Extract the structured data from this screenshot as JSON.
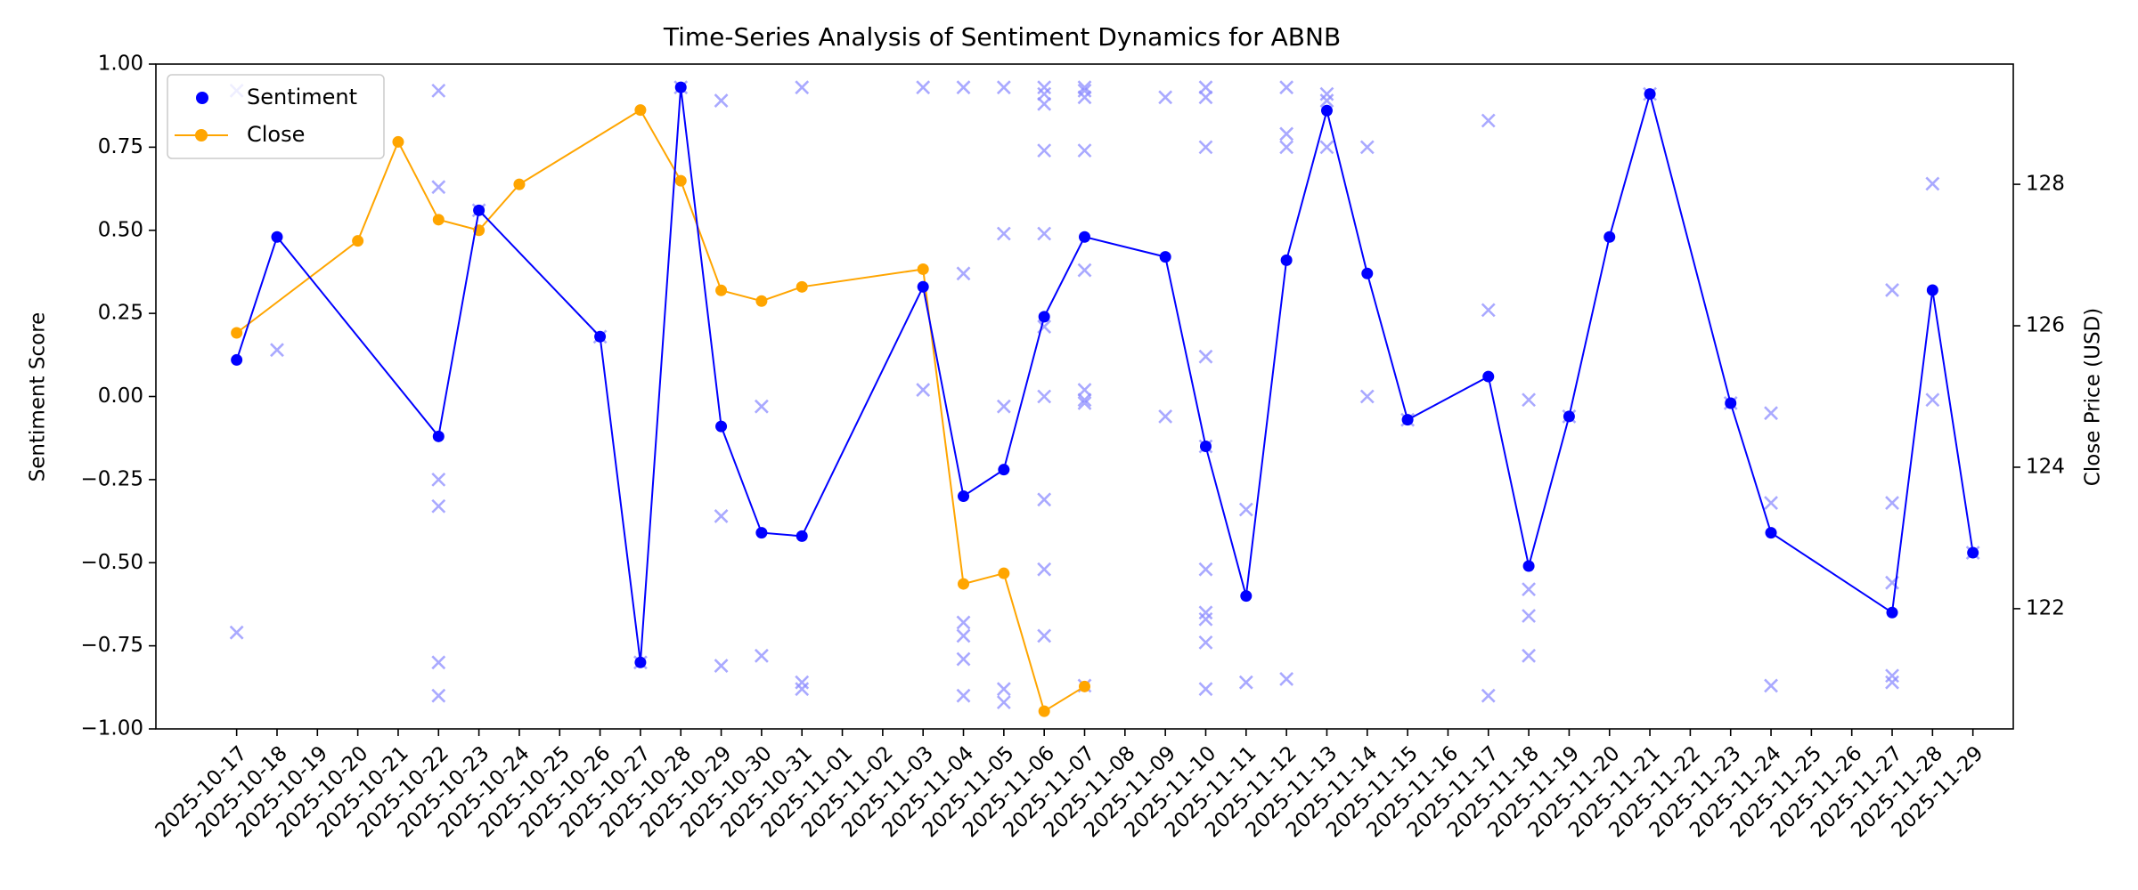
{
  "chart_data": {
    "type": "line",
    "title": "Time-Series Analysis of Sentiment Dynamics for ABNB",
    "xlabel": "",
    "ylabel": "Sentiment Score",
    "y2label": "Close Price (USD)",
    "ylim": [
      -1.0,
      1.0
    ],
    "y2lim": [
      120.3,
      129.7
    ],
    "x_range": [
      "2025-10-15",
      "2025-11-30"
    ],
    "x_ticks": [
      "2025-10-17",
      "2025-10-18",
      "2025-10-19",
      "2025-10-20",
      "2025-10-21",
      "2025-10-22",
      "2025-10-23",
      "2025-10-24",
      "2025-10-25",
      "2025-10-26",
      "2025-10-27",
      "2025-10-28",
      "2025-10-29",
      "2025-10-30",
      "2025-10-31",
      "2025-11-01",
      "2025-11-02",
      "2025-11-03",
      "2025-11-04",
      "2025-11-05",
      "2025-11-06",
      "2025-11-07",
      "2025-11-08",
      "2025-11-09",
      "2025-11-10",
      "2025-11-11",
      "2025-11-12",
      "2025-11-13",
      "2025-11-14",
      "2025-11-15",
      "2025-11-16",
      "2025-11-17",
      "2025-11-18",
      "2025-11-19",
      "2025-11-20",
      "2025-11-21",
      "2025-11-22",
      "2025-11-23",
      "2025-11-24",
      "2025-11-25",
      "2025-11-26",
      "2025-11-27",
      "2025-11-28",
      "2025-11-29"
    ],
    "y_ticks": [
      "1.00",
      "0.75",
      "0.50",
      "0.25",
      "0.00",
      "−0.25",
      "−0.50",
      "−0.75",
      "−1.00"
    ],
    "y_tick_values": [
      1.0,
      0.75,
      0.5,
      0.25,
      0.0,
      -0.25,
      -0.5,
      -0.75,
      -1.0
    ],
    "y2_ticks": [
      "128",
      "126",
      "124",
      "122"
    ],
    "y2_tick_values": [
      128,
      126,
      124,
      122
    ],
    "grid": false,
    "legend": {
      "position": "upper-left",
      "entries": [
        "Sentiment",
        "Close"
      ]
    },
    "colors": {
      "sentiment": "#0000ff",
      "close": "#ffa500",
      "scatter": "#8c8cff"
    },
    "series": [
      {
        "name": "Sentiment",
        "axis": "left",
        "style": "line-markers",
        "x": [
          "2025-10-17",
          "2025-10-18",
          "2025-10-22",
          "2025-10-23",
          "2025-10-26",
          "2025-10-27",
          "2025-10-28",
          "2025-10-29",
          "2025-10-30",
          "2025-10-31",
          "2025-11-03",
          "2025-11-04",
          "2025-11-05",
          "2025-11-06",
          "2025-11-07",
          "2025-11-09",
          "2025-11-10",
          "2025-11-11",
          "2025-11-12",
          "2025-11-13",
          "2025-11-14",
          "2025-11-15",
          "2025-11-17",
          "2025-11-18",
          "2025-11-19",
          "2025-11-20",
          "2025-11-21",
          "2025-11-23",
          "2025-11-24",
          "2025-11-27",
          "2025-11-28",
          "2025-11-29"
        ],
        "values": [
          0.11,
          0.48,
          -0.12,
          0.56,
          0.18,
          -0.8,
          0.93,
          -0.09,
          -0.41,
          -0.42,
          0.33,
          -0.3,
          -0.22,
          0.24,
          0.48,
          0.42,
          -0.15,
          -0.6,
          0.41,
          0.86,
          0.37,
          -0.07,
          0.06,
          -0.51,
          -0.06,
          0.48,
          0.91,
          -0.02,
          -0.41,
          -0.65,
          0.32,
          -0.47
        ]
      },
      {
        "name": "Close",
        "axis": "right",
        "style": "line-markers",
        "x": [
          "2025-10-17",
          "2025-10-20",
          "2025-10-21",
          "2025-10-22",
          "2025-10-23",
          "2025-10-24",
          "2025-10-27",
          "2025-10-28",
          "2025-10-29",
          "2025-10-30",
          "2025-10-31",
          "2025-11-03",
          "2025-11-04",
          "2025-11-05",
          "2025-11-06",
          "2025-11-07"
        ],
        "values": [
          125.9,
          127.2,
          128.6,
          127.5,
          127.35,
          128.0,
          129.05,
          128.05,
          126.5,
          126.35,
          126.55,
          126.8,
          122.35,
          122.5,
          120.55,
          120.9
        ]
      },
      {
        "axis": "left",
        "style": "scatter-x",
        "x": [
          "2025-10-17",
          "2025-10-17",
          "2025-10-18",
          "2025-10-22",
          "2025-10-22",
          "2025-10-22",
          "2025-10-22",
          "2025-10-22",
          "2025-10-22",
          "2025-10-23",
          "2025-10-26",
          "2025-10-27",
          "2025-10-28",
          "2025-10-29",
          "2025-10-29",
          "2025-10-29",
          "2025-10-30",
          "2025-10-30",
          "2025-10-31",
          "2025-10-31",
          "2025-10-31",
          "2025-11-03",
          "2025-11-03",
          "2025-11-04",
          "2025-11-04",
          "2025-11-04",
          "2025-11-04",
          "2025-11-04",
          "2025-11-04",
          "2025-11-05",
          "2025-11-05",
          "2025-11-05",
          "2025-11-05",
          "2025-11-05",
          "2025-11-06",
          "2025-11-06",
          "2025-11-06",
          "2025-11-06",
          "2025-11-06",
          "2025-11-06",
          "2025-11-06",
          "2025-11-06",
          "2025-11-06",
          "2025-11-06",
          "2025-11-07",
          "2025-11-07",
          "2025-11-07",
          "2025-11-07",
          "2025-11-07",
          "2025-11-07",
          "2025-11-07",
          "2025-11-07",
          "2025-11-07",
          "2025-11-09",
          "2025-11-09",
          "2025-11-10",
          "2025-11-10",
          "2025-11-10",
          "2025-11-10",
          "2025-11-10",
          "2025-11-10",
          "2025-11-10",
          "2025-11-10",
          "2025-11-10",
          "2025-11-10",
          "2025-11-11",
          "2025-11-11",
          "2025-11-12",
          "2025-11-12",
          "2025-11-12",
          "2025-11-12",
          "2025-11-13",
          "2025-11-13",
          "2025-11-13",
          "2025-11-14",
          "2025-11-14",
          "2025-11-15",
          "2025-11-17",
          "2025-11-17",
          "2025-11-17",
          "2025-11-18",
          "2025-11-18",
          "2025-11-18",
          "2025-11-18",
          "2025-11-19",
          "2025-11-21",
          "2025-11-23",
          "2025-11-24",
          "2025-11-24",
          "2025-11-24",
          "2025-11-27",
          "2025-11-27",
          "2025-11-27",
          "2025-11-27",
          "2025-11-27",
          "2025-11-28",
          "2025-11-28",
          "2025-11-29"
        ],
        "values": [
          0.92,
          -0.71,
          0.14,
          0.92,
          0.63,
          -0.25,
          -0.33,
          -0.8,
          -0.9,
          0.56,
          0.18,
          -0.8,
          0.93,
          0.89,
          -0.36,
          -0.81,
          -0.03,
          -0.78,
          0.93,
          -0.86,
          -0.88,
          0.93,
          0.02,
          0.93,
          0.37,
          -0.68,
          -0.72,
          -0.79,
          -0.9,
          0.93,
          0.49,
          -0.03,
          -0.88,
          -0.92,
          0.93,
          0.91,
          0.88,
          0.74,
          0.49,
          0.21,
          0.0,
          -0.31,
          -0.52,
          -0.72,
          0.93,
          0.92,
          0.9,
          0.74,
          0.38,
          0.02,
          -0.01,
          -0.02,
          -0.87,
          0.9,
          -0.06,
          0.93,
          0.9,
          0.75,
          0.12,
          -0.15,
          -0.52,
          -0.65,
          -0.67,
          -0.74,
          -0.88,
          -0.34,
          -0.86,
          0.93,
          0.79,
          0.75,
          -0.85,
          0.91,
          0.89,
          0.75,
          0.75,
          0.0,
          -0.07,
          0.83,
          0.26,
          -0.9,
          -0.01,
          -0.58,
          -0.66,
          -0.78,
          -0.06,
          0.91,
          -0.02,
          -0.05,
          -0.32,
          -0.87,
          0.32,
          -0.32,
          -0.56,
          -0.84,
          -0.86,
          0.64,
          -0.01,
          -0.47
        ]
      }
    ]
  }
}
